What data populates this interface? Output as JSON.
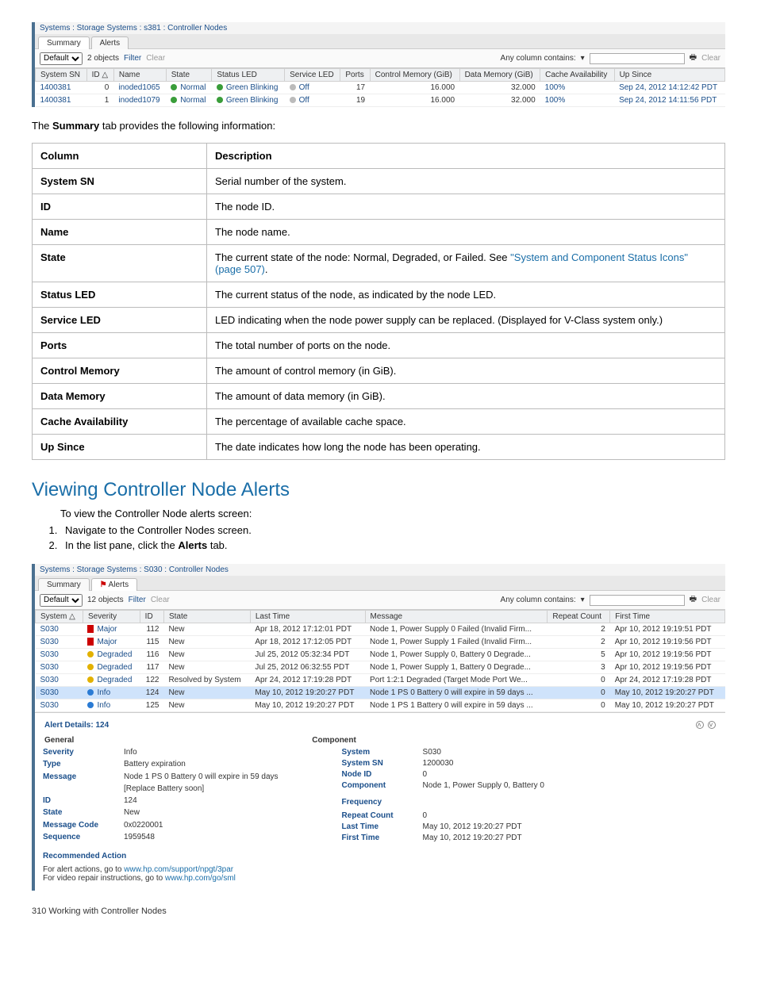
{
  "shot1": {
    "title": "Systems : Storage Systems : s381 : Controller Nodes",
    "tabs": [
      {
        "label": "Summary",
        "active": true
      },
      {
        "label": "Alerts",
        "active": false
      }
    ],
    "filter_group": "Default",
    "object_count": "2 objects",
    "filter_label": "Filter",
    "clear_label": "Clear",
    "any_col": "Any column contains:",
    "headers": [
      "System SN",
      "ID △",
      "Name",
      "State",
      "Status LED",
      "Service LED",
      "Ports",
      "Control Memory (GiB)",
      "Data Memory (GiB)",
      "Cache Availability",
      "Up Since"
    ],
    "rows": [
      {
        "sn": "1400381",
        "id": "0",
        "name": "inoded1065",
        "state": "Normal",
        "status_led": "Green Blinking",
        "service_led": "Off",
        "ports": "17",
        "ctrl": "16.000",
        "data": "32.000",
        "cache": "100%",
        "up": "Sep 24, 2012 14:12:42 PDT"
      },
      {
        "sn": "1400381",
        "id": "1",
        "name": "inoded1079",
        "state": "Normal",
        "status_led": "Green Blinking",
        "service_led": "Off",
        "ports": "19",
        "ctrl": "16.000",
        "data": "32.000",
        "cache": "100%",
        "up": "Sep 24, 2012 14:11:56 PDT"
      }
    ]
  },
  "prose_summary": "The Summary tab provides the following information:",
  "doc_table": {
    "headers": [
      "Column",
      "Description"
    ],
    "rows": [
      {
        "c": "System SN",
        "d": "Serial number of the system."
      },
      {
        "c": "ID",
        "d": "The node ID."
      },
      {
        "c": "Name",
        "d": "The node name."
      },
      {
        "c": "State",
        "d": "The current state of the node: Normal, Degraded, or Failed. See ",
        "link": "\"System and Component Status Icons\" (page 507)",
        "after": "."
      },
      {
        "c": "Status LED",
        "d": "The current status of the node, as indicated by the node LED."
      },
      {
        "c": "Service LED",
        "d": "LED indicating when the node power supply can be replaced. (Displayed for V-Class system only.)"
      },
      {
        "c": "Ports",
        "d": "The total number of ports on the node."
      },
      {
        "c": "Control Memory",
        "d": "The amount of control memory (in GiB)."
      },
      {
        "c": "Data Memory",
        "d": "The amount of data memory (in GiB)."
      },
      {
        "c": "Cache Availability",
        "d": "The percentage of available cache space."
      },
      {
        "c": "Up Since",
        "d": "The date indicates how long the node has been operating."
      }
    ]
  },
  "section_heading": "Viewing Controller Node Alerts",
  "section_intro": "To view the Controller Node alerts screen:",
  "steps": [
    "Navigate to the Controller Nodes screen.",
    "In the list pane, click the Alerts tab."
  ],
  "shot2": {
    "title": "Systems : Storage Systems : S030 : Controller Nodes",
    "tabs": [
      {
        "label": "Summary",
        "active": false
      },
      {
        "label": "Alerts",
        "active": true,
        "alert": true
      }
    ],
    "filter_group": "Default",
    "object_count": "12 objects",
    "filter_label": "Filter",
    "clear_label": "Clear",
    "any_col": "Any column contains:",
    "headers": [
      "System △",
      "Severity",
      "ID",
      "State",
      "Last Time",
      "Message",
      "Repeat Count",
      "First Time"
    ],
    "rows": [
      {
        "sys": "S030",
        "sev": "Major",
        "sev_cls": "sev-flag-red",
        "id": "112",
        "state": "New",
        "last": "Apr 18, 2012 17:12:01 PDT",
        "msg": "Node 1, Power Supply 0 Failed (Invalid Firm...",
        "rc": "2",
        "first": "Apr 10, 2012 19:19:51 PDT"
      },
      {
        "sys": "S030",
        "sev": "Major",
        "sev_cls": "sev-flag-red",
        "id": "115",
        "state": "New",
        "last": "Apr 18, 2012 17:12:05 PDT",
        "msg": "Node 1, Power Supply 1 Failed (Invalid Firm...",
        "rc": "2",
        "first": "Apr 10, 2012 19:19:56 PDT"
      },
      {
        "sys": "S030",
        "sev": "Degraded",
        "sev_cls": "dot-yellow",
        "id": "116",
        "state": "New",
        "last": "Jul 25, 2012 05:32:34 PDT",
        "msg": "Node 1, Power Supply 0, Battery 0 Degrade...",
        "rc": "5",
        "first": "Apr 10, 2012 19:19:56 PDT"
      },
      {
        "sys": "S030",
        "sev": "Degraded",
        "sev_cls": "dot-yellow",
        "id": "117",
        "state": "New",
        "last": "Jul 25, 2012 06:32:55 PDT",
        "msg": "Node 1, Power Supply 1, Battery 0 Degrade...",
        "rc": "3",
        "first": "Apr 10, 2012 19:19:56 PDT"
      },
      {
        "sys": "S030",
        "sev": "Degraded",
        "sev_cls": "dot-yellow",
        "id": "122",
        "state": "Resolved by System",
        "last": "Apr 24, 2012 17:19:28 PDT",
        "msg": "Port 1:2:1 Degraded (Target Mode Port We...",
        "rc": "0",
        "first": "Apr 24, 2012 17:19:28 PDT"
      },
      {
        "sys": "S030",
        "sev": "Info",
        "sev_cls": "dot-blue",
        "id": "124",
        "state": "New",
        "last": "May 10, 2012 19:20:27 PDT",
        "msg": "Node 1 PS 0 Battery 0 will expire in 59 days ...",
        "rc": "0",
        "first": "May 10, 2012 19:20:27 PDT",
        "sel": true
      },
      {
        "sys": "S030",
        "sev": "Info",
        "sev_cls": "dot-blue",
        "id": "125",
        "state": "New",
        "last": "May 10, 2012 19:20:27 PDT",
        "msg": "Node 1 PS 1 Battery 0 will expire in 59 days ...",
        "rc": "0",
        "first": "May 10, 2012 19:20:27 PDT"
      }
    ],
    "details": {
      "title": "Alert Details: 124",
      "general_label": "General",
      "component_label": "Component",
      "general": [
        {
          "k": "Severity",
          "v": "Info"
        },
        {
          "k": "Type",
          "v": "Battery expiration"
        },
        {
          "k": "Message",
          "v": "Node 1 PS 0 Battery 0 will expire in 59 days"
        },
        {
          "k": "",
          "v": "[Replace Battery soon]"
        },
        {
          "k": "ID",
          "v": "124"
        },
        {
          "k": "State",
          "v": "New"
        },
        {
          "k": "Message Code",
          "v": "0x0220001"
        },
        {
          "k": "Sequence",
          "v": "1959548"
        }
      ],
      "component": [
        {
          "k": "System",
          "v": "S030"
        },
        {
          "k": "System SN",
          "v": "1200030"
        },
        {
          "k": "Node ID",
          "v": "0"
        },
        {
          "k": "Component",
          "v": "Node 1, Power Supply 0, Battery 0"
        }
      ],
      "frequency_label": "Frequency",
      "frequency": [
        {
          "k": "Repeat Count",
          "v": "0"
        },
        {
          "k": "Last Time",
          "v": "May 10, 2012 19:20:27 PDT"
        },
        {
          "k": "First Time",
          "v": "May 10, 2012 19:20:27 PDT"
        }
      ],
      "rec_label": "Recommended Action",
      "rec_lines": [
        {
          "pre": "For alert actions, go to ",
          "url": "www.hp.com/support/npgt/3par"
        },
        {
          "pre": "For video repair instructions, go to ",
          "url": "www.hp.com/go/sml"
        }
      ]
    }
  },
  "footer": "310   Working with Controller Nodes"
}
